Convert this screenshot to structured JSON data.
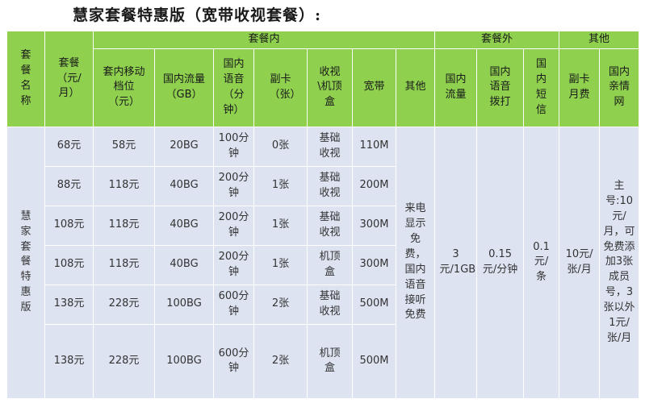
{
  "page": {
    "title": "慧家套餐特惠版（宽带收视套餐）:"
  },
  "groups": {
    "inner": "套餐内",
    "outer": "套餐外",
    "other": "其他"
  },
  "headers": {
    "name": "套餐名称",
    "fee": "套餐（元/月）",
    "mobile_tier": "套内移动档位（元）",
    "domestic_data": "国内流量（GB）",
    "domestic_voice": "国内语音（分钟）",
    "sub_card": "副卡（张）",
    "tv_box": "收视\\机顶盒",
    "broadband": "宽带",
    "inner_other": "其他",
    "out_data": "国内流量",
    "out_voice": "国内语音拨打",
    "out_sms": "国内短信",
    "sub_fee": "副卡月费",
    "family_net": "国内亲情网"
  },
  "plan_name": "慧家套餐特惠版",
  "rows": [
    {
      "fee": "68元",
      "tier": "58元",
      "data": "20BG",
      "voice": "100分钟",
      "sub": "0张",
      "tv": "基础收视",
      "bb": "110M"
    },
    {
      "fee": "88元",
      "tier": "118元",
      "data": "40BG",
      "voice": "200分钟",
      "sub": "1张",
      "tv": "基础收视",
      "bb": "200M"
    },
    {
      "fee": "108元",
      "tier": "118元",
      "data": "40BG",
      "voice": "200分钟",
      "sub": "1张",
      "tv": "基础收视",
      "bb": "300M"
    },
    {
      "fee": "108元",
      "tier": "118元",
      "data": "40BG",
      "voice": "200分钟",
      "sub": "1张",
      "tv": "机顶盒",
      "bb": "300M"
    },
    {
      "fee": "138元",
      "tier": "228元",
      "data": "100BG",
      "voice": "600分钟",
      "sub": "2张",
      "tv": "基础收视",
      "bb": "500M"
    },
    {
      "fee": "138元",
      "tier": "228元",
      "data": "100BG",
      "voice": "600分钟",
      "sub": "2张",
      "tv": "机顶盒",
      "bb": "500M"
    }
  ],
  "shared": {
    "inner_other": "来电显示免费，国内语音接听免费",
    "out_data": "3元/1GB",
    "out_voice": "0.15元/分钟",
    "out_sms": "0.1元/条",
    "sub_fee": "10元/张/月",
    "family_net": "主号:10元/月，可免费添加3张成员号，3张以外1元/张/月"
  },
  "colors": {
    "header_bg": "#8fd14f",
    "body_bg": "#dde3f1",
    "border": "#ffffff"
  }
}
